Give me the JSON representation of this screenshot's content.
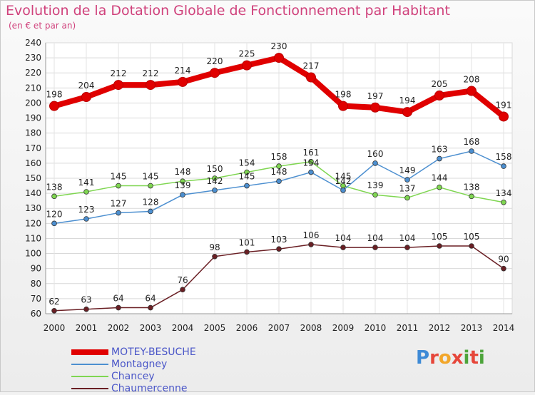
{
  "title": "Evolution de la Dotation Globale de Fonctionnement par Habitant",
  "subtitle": "(en € et par an)",
  "logo": "Proxiti",
  "chart_data": {
    "type": "line",
    "title": "Evolution de la Dotation Globale de Fonctionnement par Habitant",
    "subtitle": "(en € et par an)",
    "x": [
      "2000",
      "2001",
      "2002",
      "2003",
      "2004",
      "2005",
      "2006",
      "2007",
      "2008",
      "2009",
      "2010",
      "2011",
      "2012",
      "2013",
      "2014"
    ],
    "ylim": [
      60,
      240
    ],
    "yticks": [
      60,
      70,
      80,
      90,
      100,
      110,
      120,
      130,
      140,
      150,
      160,
      170,
      180,
      190,
      200,
      210,
      220,
      230,
      240
    ],
    "grid": true,
    "legend": "bottom-left",
    "series": [
      {
        "name": "MOTEY-BESUCHE",
        "color": "#e00000",
        "values": [
          198,
          204,
          212,
          212,
          214,
          220,
          225,
          230,
          217,
          198,
          197,
          194,
          205,
          208,
          191
        ]
      },
      {
        "name": "Montagney",
        "color": "#4c8fd0",
        "values": [
          120,
          123,
          127,
          128,
          139,
          142,
          145,
          148,
          154,
          142,
          160,
          149,
          163,
          168,
          158
        ]
      },
      {
        "name": "Chancey",
        "color": "#7fd651",
        "values": [
          138,
          141,
          145,
          145,
          148,
          150,
          154,
          158,
          161,
          145,
          139,
          137,
          144,
          138,
          134
        ]
      },
      {
        "name": "Chaumercenne",
        "color": "#6a1f24",
        "values": [
          62,
          63,
          64,
          64,
          76,
          98,
          101,
          103,
          106,
          104,
          104,
          104,
          105,
          105,
          90
        ]
      }
    ]
  }
}
